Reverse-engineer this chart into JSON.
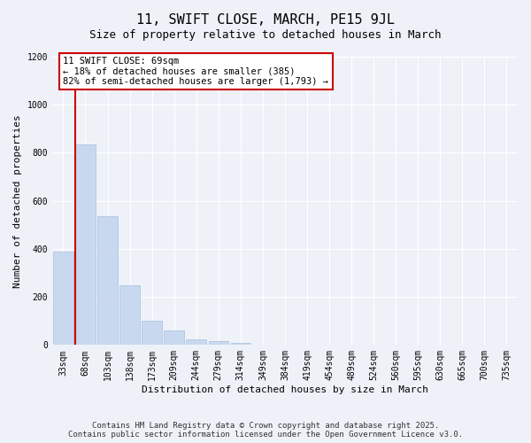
{
  "title": "11, SWIFT CLOSE, MARCH, PE15 9JL",
  "subtitle": "Size of property relative to detached houses in March",
  "xlabel": "Distribution of detached houses by size in March",
  "ylabel": "Number of detached properties",
  "categories": [
    "33sqm",
    "68sqm",
    "103sqm",
    "138sqm",
    "173sqm",
    "209sqm",
    "244sqm",
    "279sqm",
    "314sqm",
    "349sqm",
    "384sqm",
    "419sqm",
    "454sqm",
    "489sqm",
    "524sqm",
    "560sqm",
    "595sqm",
    "630sqm",
    "665sqm",
    "700sqm",
    "735sqm"
  ],
  "values": [
    390,
    835,
    535,
    248,
    100,
    62,
    22,
    17,
    9,
    3,
    0,
    0,
    0,
    0,
    0,
    0,
    0,
    0,
    0,
    0,
    0
  ],
  "bar_color": "#c8d8ee",
  "bar_edgecolor": "#a8c0e0",
  "vline_color": "#cc0000",
  "ylim": [
    0,
    1200
  ],
  "yticks": [
    0,
    200,
    400,
    600,
    800,
    1000,
    1200
  ],
  "annotation_title": "11 SWIFT CLOSE: 69sqm",
  "annotation_line2": "← 18% of detached houses are smaller (385)",
  "annotation_line3": "82% of semi-detached houses are larger (1,793) →",
  "annotation_box_edgecolor": "#cc0000",
  "footer_line1": "Contains HM Land Registry data © Crown copyright and database right 2025.",
  "footer_line2": "Contains public sector information licensed under the Open Government Licence v3.0.",
  "background_color": "#eef2f8",
  "plot_bg_color": "#eef2f8",
  "grid_color": "#ffffff",
  "title_fontsize": 11,
  "subtitle_fontsize": 9,
  "axis_label_fontsize": 8,
  "tick_fontsize": 7,
  "annotation_fontsize": 7.5,
  "footer_fontsize": 6.5
}
